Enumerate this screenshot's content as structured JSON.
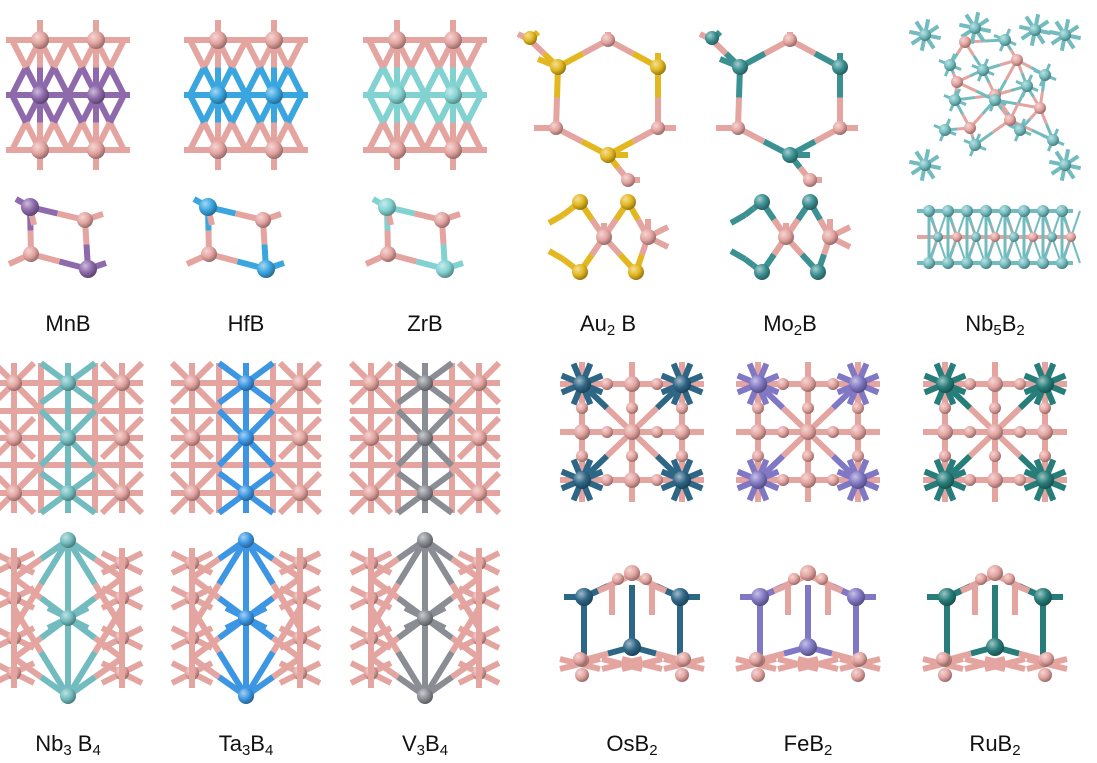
{
  "colors": {
    "boron": "#e4a4a0",
    "boron_dark": "#c98882",
    "Mn": "#8e69ab",
    "Hf": "#3aa6e0",
    "Zr": "#83d2d2",
    "Au": "#e3b71f",
    "Mo": "#3b9092",
    "Nb": "#72bcbf",
    "Ta": "#3c96e3",
    "V": "#8a8d93",
    "Os": "#2e6686",
    "Fe": "#8078c4",
    "Ru": "#277d7a"
  },
  "row1": [
    {
      "id": "MnB",
      "metal": "Mn",
      "top": "square",
      "bottom": "chair",
      "label": [
        {
          "t": "MnB"
        }
      ]
    },
    {
      "id": "HfB",
      "metal": "Hf",
      "top": "square",
      "bottom": "chair",
      "label": [
        {
          "t": "HfB"
        }
      ]
    },
    {
      "id": "ZrB",
      "metal": "Zr",
      "top": "square",
      "bottom": "chair",
      "label": [
        {
          "t": "ZrB"
        }
      ]
    },
    {
      "id": "Au2B",
      "metal": "Au",
      "top": "hexagon",
      "bottom": "bowtie",
      "label": [
        {
          "t": "Au"
        },
        {
          "s": "2"
        },
        {
          "t": " B"
        }
      ]
    },
    {
      "id": "Mo2B",
      "metal": "Mo",
      "top": "hexagon",
      "bottom": "bowtie",
      "label": [
        {
          "t": "Mo"
        },
        {
          "s": "2"
        },
        {
          "t": "B"
        }
      ]
    },
    {
      "id": "Nb5B2",
      "metal": "Nb",
      "top": "star",
      "bottom": "slab",
      "label": [
        {
          "t": "Nb"
        },
        {
          "s": "5"
        },
        {
          "t": "B"
        },
        {
          "s": "2"
        }
      ]
    }
  ],
  "row2": [
    {
      "id": "Nb3B4",
      "metal": "Nb",
      "top": "grid4",
      "bottom": "diamond",
      "label": [
        {
          "t": "Nb"
        },
        {
          "s": "3"
        },
        {
          "t": " B"
        },
        {
          "s": "4"
        }
      ]
    },
    {
      "id": "Ta3B4",
      "metal": "Ta",
      "top": "grid4",
      "bottom": "diamond",
      "label": [
        {
          "t": "Ta"
        },
        {
          "s": "3"
        },
        {
          "t": "B"
        },
        {
          "s": "4"
        }
      ]
    },
    {
      "id": "V3B4",
      "metal": "V",
      "top": "grid4",
      "bottom": "diamond",
      "label": [
        {
          "t": "V"
        },
        {
          "s": "3"
        },
        {
          "t": "B"
        },
        {
          "s": "4"
        }
      ]
    },
    {
      "id": "OsB2",
      "metal": "Os",
      "top": "grid3",
      "bottom": "arch",
      "label": [
        {
          "t": "OsB"
        },
        {
          "s": "2"
        }
      ]
    },
    {
      "id": "FeB2",
      "metal": "Fe",
      "top": "grid3",
      "bottom": "arch",
      "label": [
        {
          "t": "FeB"
        },
        {
          "s": "2"
        }
      ]
    },
    {
      "id": "RuB2",
      "metal": "Ru",
      "top": "grid3",
      "bottom": "arch",
      "label": [
        {
          "t": "RuB"
        },
        {
          "s": "2"
        }
      ]
    }
  ]
}
